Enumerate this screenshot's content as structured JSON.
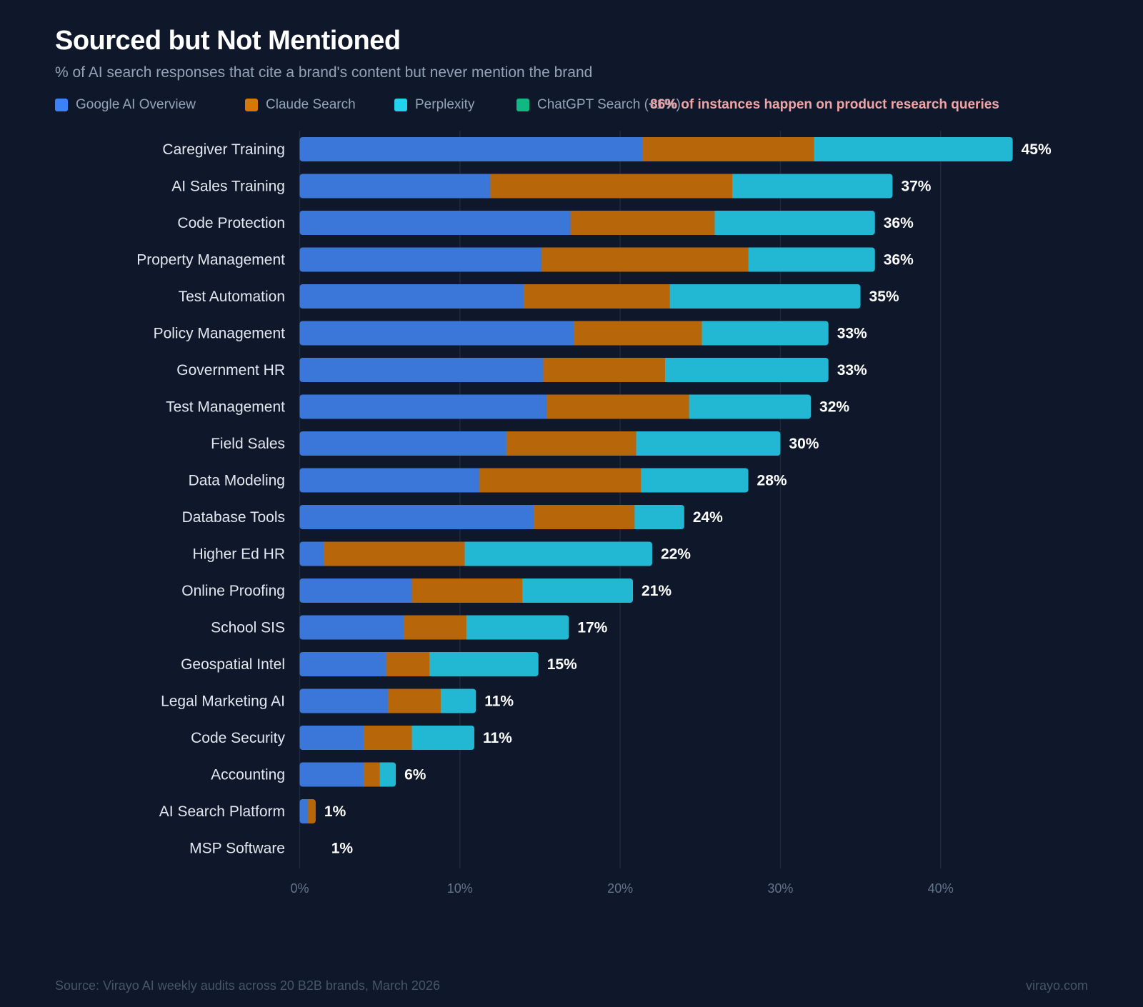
{
  "chart_data": {
    "type": "bar",
    "orientation": "horizontal",
    "stacked": true,
    "title": "Sourced but Not Mentioned",
    "subtitle": "% of AI search responses that cite a brand's content but never mention the brand",
    "annotation": "86% of instances happen on product research queries",
    "source": "Source: Virayo AI weekly audits across 20 B2B brands, March 2026",
    "watermark": "virayo.com",
    "xlim": [
      0,
      45
    ],
    "xticks": [
      "0%",
      "10%",
      "20%",
      "30%",
      "40%"
    ],
    "xtick_values": [
      0,
      10,
      20,
      30,
      40
    ],
    "grid": true,
    "legend_position": "top-left",
    "categories": [
      "Caregiver Training",
      "AI Sales Training",
      "Code Protection",
      "Property Management",
      "Test Automation",
      "Policy Management",
      "Government HR",
      "Test Management",
      "Field Sales",
      "Data Modeling",
      "Database Tools",
      "Higher Ed HR",
      "Online Proofing",
      "School SIS",
      "Geospatial Intel",
      "Legal Marketing AI",
      "Code Security",
      "Accounting",
      "AI Search Platform",
      "MSP Software"
    ],
    "series": [
      {
        "name": "Google AI Overview",
        "color": "#3b76d9",
        "legend_color": "#3b82f6",
        "values": [
          21.4,
          11.9,
          16.9,
          15.1,
          14.0,
          17.1,
          15.2,
          15.4,
          12.9,
          11.2,
          14.6,
          1.5,
          7.0,
          6.5,
          5.4,
          5.5,
          4.0,
          4.0,
          0.5,
          0
        ]
      },
      {
        "name": "Claude Search",
        "color": "#b8660a",
        "legend_color": "#d97706",
        "values": [
          10.7,
          15.1,
          9.0,
          12.9,
          9.1,
          8.0,
          7.6,
          8.9,
          8.1,
          10.1,
          6.3,
          8.8,
          6.9,
          3.9,
          2.7,
          3.3,
          3.0,
          1.0,
          0.5,
          0
        ]
      },
      {
        "name": "Perplexity",
        "color": "#22b8d4",
        "legend_color": "#22d3ee",
        "values": [
          12.4,
          10.0,
          10.0,
          7.9,
          11.9,
          7.9,
          10.2,
          7.6,
          9.0,
          6.7,
          3.1,
          11.7,
          6.9,
          6.4,
          6.8,
          2.2,
          3.9,
          1.0,
          0,
          0
        ]
      },
      {
        "name": "ChatGPT Search (<1%)",
        "color": "#10b981",
        "legend_color": "#10b981",
        "values": [
          0,
          0,
          0,
          0,
          0,
          0,
          0,
          0,
          0,
          0,
          0,
          0,
          0,
          0,
          0,
          0,
          0,
          0,
          0,
          0
        ]
      }
    ],
    "totals_labels": [
      "45%",
      "37%",
      "36%",
      "36%",
      "35%",
      "33%",
      "33%",
      "32%",
      "30%",
      "28%",
      "24%",
      "22%",
      "21%",
      "17%",
      "15%",
      "11%",
      "11%",
      "6%",
      "1%",
      "1%"
    ]
  }
}
